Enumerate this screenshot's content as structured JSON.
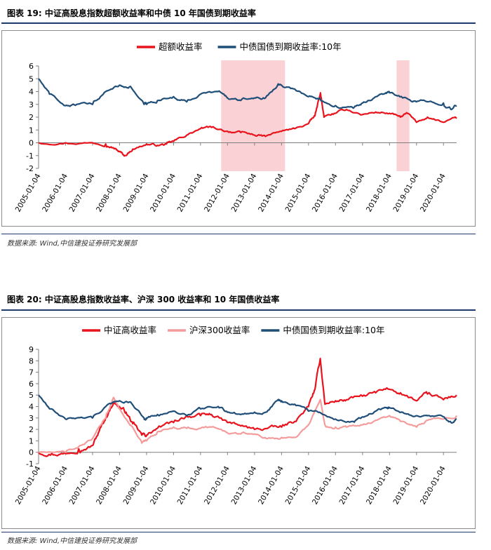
{
  "figures": [
    {
      "title": "图表  19:  中证高股息指数超额收益率和中债 10 年国债到期收益率",
      "source": "数据来源:    Wind,中信建投证券研究发展部"
    },
    {
      "title": "图表  20:  中证高股息指数收益率、沪深 300 收益率和 10 年国债收益率",
      "source": "数据来源:    Wind,中信建投证券研究发展部"
    }
  ],
  "chart_data": [
    {
      "type": "line",
      "title": "",
      "xlabel": "",
      "ylabel": "",
      "ylim": [
        -2,
        6
      ],
      "yticks": [
        -2,
        -1,
        0,
        1,
        2,
        3,
        4,
        5,
        6
      ],
      "x_range": [
        "2005-01-04",
        "2020-06-30"
      ],
      "x_ticks": [
        "2005-01-04",
        "2006-01-04",
        "2007-01-04",
        "2008-01-04",
        "2009-01-04",
        "2010-01-04",
        "2011-01-04",
        "2012-01-04",
        "2013-01-04",
        "2014-01-04",
        "2015-01-04",
        "2016-01-04",
        "2017-01-04",
        "2018-01-04",
        "2019-01-04",
        "2020-01-04"
      ],
      "grid": false,
      "legend_position": "top-center",
      "shaded_regions": [
        {
          "start": "2011-10-10",
          "end": "2014-02-20",
          "color": "#f9c9cc"
        },
        {
          "start": "2018-04-10",
          "end": "2018-09-30",
          "color": "#f9c9cc"
        }
      ],
      "series": [
        {
          "name": "超额收益率",
          "color": "#e8131c",
          "points": [
            [
              "2005-01-04",
              0.0
            ],
            [
              "2006-01-04",
              0.0
            ],
            [
              "2007-01-04",
              0.0
            ],
            [
              "2007-07-01",
              -0.1
            ],
            [
              "2007-10-15",
              -0.4
            ],
            [
              "2008-01-04",
              -0.7
            ],
            [
              "2008-03-15",
              -1.0
            ],
            [
              "2008-07-01",
              -0.5
            ],
            [
              "2009-01-04",
              -0.1
            ],
            [
              "2009-06-01",
              -0.2
            ],
            [
              "2009-10-01",
              -0.1
            ],
            [
              "2010-01-04",
              0.1
            ],
            [
              "2010-07-01",
              0.6
            ],
            [
              "2011-01-04",
              1.1
            ],
            [
              "2011-06-01",
              1.2
            ],
            [
              "2012-01-04",
              0.9
            ],
            [
              "2012-07-01",
              0.8
            ],
            [
              "2013-01-04",
              0.6
            ],
            [
              "2013-06-01",
              0.5
            ],
            [
              "2014-01-04",
              0.9
            ],
            [
              "2014-07-01",
              1.1
            ],
            [
              "2015-01-04",
              1.5
            ],
            [
              "2015-04-01",
              2.1
            ],
            [
              "2015-06-15",
              3.9
            ],
            [
              "2015-08-01",
              2.0
            ],
            [
              "2016-01-04",
              2.3
            ],
            [
              "2016-06-01",
              2.6
            ],
            [
              "2017-01-04",
              2.2
            ],
            [
              "2017-07-01",
              2.4
            ],
            [
              "2018-01-04",
              2.3
            ],
            [
              "2018-06-01",
              2.0
            ],
            [
              "2018-09-01",
              2.3
            ],
            [
              "2019-01-04",
              1.6
            ],
            [
              "2019-06-01",
              2.0
            ],
            [
              "2020-01-04",
              1.6
            ],
            [
              "2020-06-30",
              1.9
            ]
          ]
        },
        {
          "name": "中债国债到期收益率:10年",
          "color": "#1f4e79",
          "points": [
            [
              "2005-01-04",
              5.0
            ],
            [
              "2005-06-01",
              3.8
            ],
            [
              "2006-01-04",
              2.9
            ],
            [
              "2006-06-01",
              3.0
            ],
            [
              "2007-01-04",
              3.0
            ],
            [
              "2007-07-01",
              4.0
            ],
            [
              "2008-01-04",
              4.5
            ],
            [
              "2008-06-01",
              4.4
            ],
            [
              "2008-12-01",
              3.0
            ],
            [
              "2009-01-04",
              3.0
            ],
            [
              "2009-06-01",
              3.3
            ],
            [
              "2010-01-04",
              3.6
            ],
            [
              "2010-07-01",
              3.2
            ],
            [
              "2011-01-04",
              3.8
            ],
            [
              "2011-09-01",
              4.0
            ],
            [
              "2012-01-04",
              3.5
            ],
            [
              "2012-07-01",
              3.3
            ],
            [
              "2013-01-04",
              3.5
            ],
            [
              "2013-06-01",
              3.5
            ],
            [
              "2013-11-20",
              4.6
            ],
            [
              "2014-01-04",
              4.5
            ],
            [
              "2014-07-01",
              4.2
            ],
            [
              "2015-01-04",
              3.6
            ],
            [
              "2015-06-01",
              3.5
            ],
            [
              "2016-01-04",
              2.9
            ],
            [
              "2016-09-01",
              2.7
            ],
            [
              "2017-01-04",
              3.1
            ],
            [
              "2017-07-01",
              3.6
            ],
            [
              "2017-11-15",
              3.9
            ],
            [
              "2018-01-04",
              3.9
            ],
            [
              "2018-07-01",
              3.5
            ],
            [
              "2019-01-04",
              3.2
            ],
            [
              "2019-06-01",
              3.2
            ],
            [
              "2020-01-04",
              3.1
            ],
            [
              "2020-04-15",
              2.6
            ],
            [
              "2020-06-30",
              2.9
            ]
          ]
        }
      ]
    },
    {
      "type": "line",
      "title": "",
      "xlabel": "",
      "ylabel": "",
      "ylim": [
        -1,
        9
      ],
      "yticks": [
        -1,
        0,
        1,
        2,
        3,
        4,
        5,
        6,
        7,
        8,
        9
      ],
      "x_range": [
        "2005-01-04",
        "2020-06-30"
      ],
      "x_ticks": [
        "2005-01-04",
        "2006-01-04",
        "2007-01-04",
        "2008-01-04",
        "2009-01-04",
        "2010-01-04",
        "2011-01-04",
        "2012-01-04",
        "2013-01-04",
        "2014-01-04",
        "2015-01-04",
        "2016-01-04",
        "2017-01-04",
        "2018-01-04",
        "2019-01-04",
        "2020-01-04"
      ],
      "grid": false,
      "legend_position": "top-center",
      "series": [
        {
          "name": "中证高收益率",
          "color": "#e8131c",
          "points": [
            [
              "2005-01-04",
              0.0
            ],
            [
              "2005-07-01",
              -0.1
            ],
            [
              "2006-01-04",
              -0.1
            ],
            [
              "2006-07-01",
              0.3
            ],
            [
              "2007-01-04",
              0.6
            ],
            [
              "2007-04-01",
              1.8
            ],
            [
              "2007-07-01",
              3.0
            ],
            [
              "2007-10-15",
              4.4
            ],
            [
              "2008-01-04",
              4.0
            ],
            [
              "2008-04-01",
              3.5
            ],
            [
              "2008-07-01",
              2.5
            ],
            [
              "2008-11-01",
              1.5
            ],
            [
              "2009-01-04",
              1.5
            ],
            [
              "2009-06-01",
              2.1
            ],
            [
              "2010-01-04",
              2.6
            ],
            [
              "2010-07-01",
              3.2
            ],
            [
              "2011-01-04",
              3.2
            ],
            [
              "2011-06-01",
              3.3
            ],
            [
              "2012-01-04",
              2.6
            ],
            [
              "2012-07-01",
              2.3
            ],
            [
              "2013-01-04",
              2.0
            ],
            [
              "2013-07-01",
              2.1
            ],
            [
              "2014-01-04",
              2.2
            ],
            [
              "2014-07-01",
              2.7
            ],
            [
              "2015-01-04",
              4.0
            ],
            [
              "2015-04-01",
              5.5
            ],
            [
              "2015-06-12",
              8.2
            ],
            [
              "2015-08-15",
              4.2
            ],
            [
              "2016-01-04",
              4.5
            ],
            [
              "2016-06-01",
              4.6
            ],
            [
              "2017-01-04",
              4.9
            ],
            [
              "2017-07-01",
              5.2
            ],
            [
              "2018-01-04",
              5.5
            ],
            [
              "2018-06-01",
              5.2
            ],
            [
              "2019-01-04",
              4.5
            ],
            [
              "2019-06-01",
              5.1
            ],
            [
              "2020-01-04",
              4.6
            ],
            [
              "2020-06-30",
              5.0
            ]
          ]
        },
        {
          "name": "沪深300收益率",
          "color": "#f49c9c",
          "points": [
            [
              "2005-01-04",
              0.0
            ],
            [
              "2006-01-04",
              0.0
            ],
            [
              "2006-07-01",
              0.5
            ],
            [
              "2007-01-04",
              1.2
            ],
            [
              "2007-07-01",
              3.0
            ],
            [
              "2007-10-15",
              4.8
            ],
            [
              "2008-01-04",
              3.8
            ],
            [
              "2008-07-01",
              2.2
            ],
            [
              "2008-11-01",
              0.8
            ],
            [
              "2009-01-04",
              1.0
            ],
            [
              "2009-06-01",
              1.8
            ],
            [
              "2010-01-04",
              2.2
            ],
            [
              "2010-07-01",
              2.1
            ],
            [
              "2011-01-04",
              2.1
            ],
            [
              "2011-06-01",
              2.2
            ],
            [
              "2012-01-04",
              1.7
            ],
            [
              "2012-07-01",
              1.6
            ],
            [
              "2013-01-04",
              1.6
            ],
            [
              "2013-07-01",
              1.2
            ],
            [
              "2014-01-04",
              1.3
            ],
            [
              "2014-07-01",
              1.3
            ],
            [
              "2015-01-04",
              2.4
            ],
            [
              "2015-06-12",
              4.6
            ],
            [
              "2015-08-15",
              2.4
            ],
            [
              "2016-01-04",
              2.2
            ],
            [
              "2016-06-01",
              2.2
            ],
            [
              "2017-01-04",
              2.4
            ],
            [
              "2017-07-01",
              2.8
            ],
            [
              "2018-01-04",
              3.2
            ],
            [
              "2018-06-01",
              2.7
            ],
            [
              "2019-01-04",
              2.2
            ],
            [
              "2019-06-01",
              2.8
            ],
            [
              "2020-01-04",
              2.9
            ],
            [
              "2020-06-30",
              3.2
            ]
          ]
        },
        {
          "name": "中债国债到期收益率:10年",
          "color": "#1f4e79",
          "points": [
            [
              "2005-01-04",
              5.0
            ],
            [
              "2005-06-01",
              3.8
            ],
            [
              "2006-01-04",
              2.9
            ],
            [
              "2006-06-01",
              3.0
            ],
            [
              "2007-01-04",
              3.0
            ],
            [
              "2007-07-01",
              4.0
            ],
            [
              "2008-01-04",
              4.5
            ],
            [
              "2008-06-01",
              4.4
            ],
            [
              "2008-12-01",
              3.0
            ],
            [
              "2009-01-04",
              3.0
            ],
            [
              "2009-06-01",
              3.3
            ],
            [
              "2010-01-04",
              3.6
            ],
            [
              "2010-07-01",
              3.2
            ],
            [
              "2011-01-04",
              3.8
            ],
            [
              "2011-09-01",
              4.0
            ],
            [
              "2012-01-04",
              3.5
            ],
            [
              "2012-07-01",
              3.3
            ],
            [
              "2013-01-04",
              3.5
            ],
            [
              "2013-06-01",
              3.5
            ],
            [
              "2013-11-20",
              4.6
            ],
            [
              "2014-01-04",
              4.5
            ],
            [
              "2014-07-01",
              4.2
            ],
            [
              "2015-01-04",
              3.6
            ],
            [
              "2015-06-01",
              3.5
            ],
            [
              "2016-01-04",
              2.9
            ],
            [
              "2016-09-01",
              2.7
            ],
            [
              "2017-01-04",
              3.1
            ],
            [
              "2017-07-01",
              3.6
            ],
            [
              "2017-11-15",
              3.9
            ],
            [
              "2018-01-04",
              3.9
            ],
            [
              "2018-07-01",
              3.5
            ],
            [
              "2019-01-04",
              3.2
            ],
            [
              "2019-06-01",
              3.2
            ],
            [
              "2020-01-04",
              3.1
            ],
            [
              "2020-04-15",
              2.6
            ],
            [
              "2020-06-30",
              2.9
            ]
          ]
        }
      ]
    }
  ]
}
